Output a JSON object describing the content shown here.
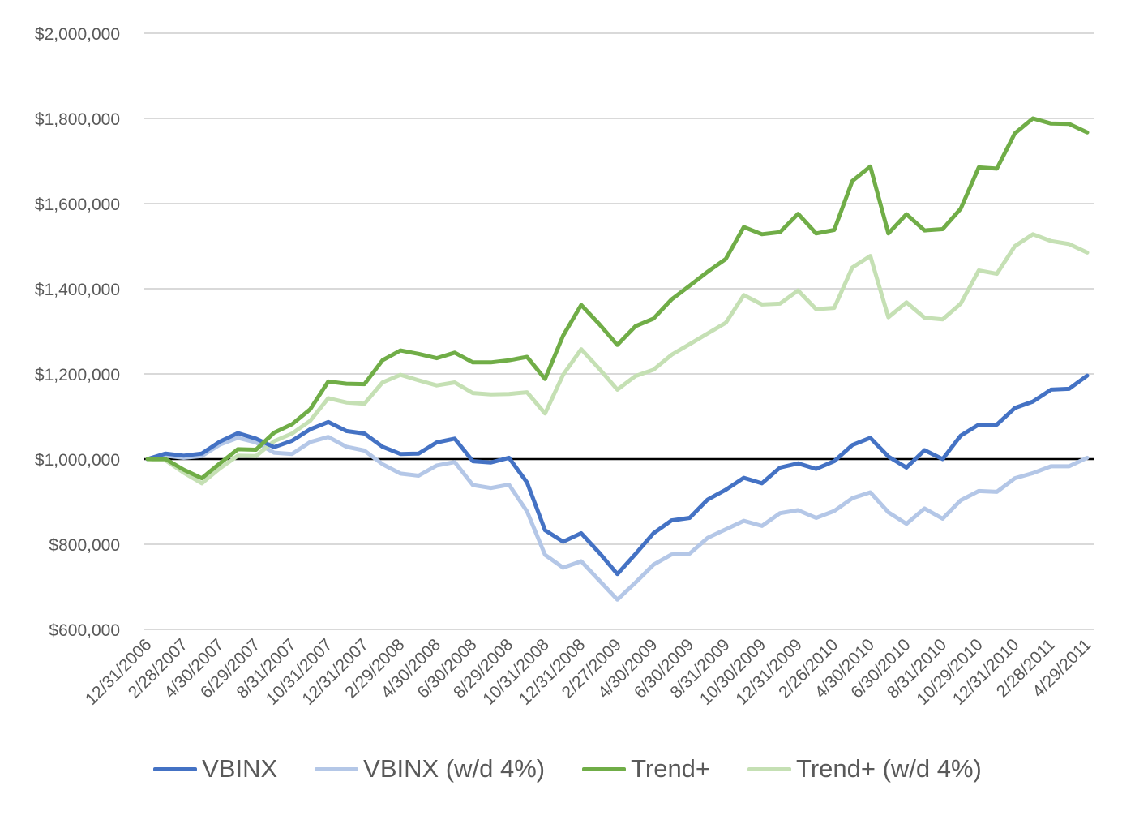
{
  "chart_data": {
    "type": "line",
    "title": "",
    "xlabel": "",
    "ylabel": "",
    "ylim": [
      600000,
      2000000
    ],
    "yticks": [
      600000,
      800000,
      1000000,
      1200000,
      1400000,
      1600000,
      1800000,
      2000000
    ],
    "ytick_labels": [
      "$600,000",
      "$800,000",
      "$1,000,000",
      "$1,200,000",
      "$1,400,000",
      "$1,600,000",
      "$1,800,000",
      "$2,000,000"
    ],
    "grid": true,
    "legend_position": "bottom",
    "reference_line": 1000000,
    "xtick_labels": [
      "12/31/2006",
      "2/28/2007",
      "4/30/2007",
      "6/29/2007",
      "8/31/2007",
      "10/31/2007",
      "12/31/2007",
      "2/29/2008",
      "4/30/2008",
      "6/30/2008",
      "8/29/2008",
      "10/31/2008",
      "12/31/2008",
      "2/27/2009",
      "4/30/2009",
      "6/30/2009",
      "8/31/2009",
      "10/30/2009",
      "12/31/2009",
      "2/26/2010",
      "4/30/2010",
      "6/30/2010",
      "8/31/2010",
      "10/29/2010",
      "12/31/2010",
      "2/28/2011",
      "4/29/2011"
    ],
    "series": [
      {
        "name": "VBINX",
        "color": "#4472c4",
        "values": [
          1000000,
          1013000,
          1008000,
          1013000,
          1041000,
          1061000,
          1048000,
          1028000,
          1043000,
          1070000,
          1087000,
          1066000,
          1060000,
          1029000,
          1012000,
          1013000,
          1039000,
          1048000,
          995000,
          992000,
          1003000,
          945000,
          833000,
          806000,
          826000,
          780000,
          730000,
          777000,
          826000,
          856000,
          862000,
          905000,
          928000,
          956000,
          943000,
          980000,
          990000,
          977000,
          995000,
          1033000,
          1050000,
          1006000,
          980000,
          1021000,
          1000000,
          1055000,
          1081000,
          1081000,
          1120000,
          1135000,
          1163000,
          1165000,
          1196000
        ]
      },
      {
        "name": "VBINX (w/d 4%)",
        "color": "#b4c7e7",
        "values": [
          1000000,
          1008000,
          1003000,
          1007000,
          1034000,
          1050000,
          1039000,
          1015000,
          1012000,
          1040000,
          1052000,
          1029000,
          1020000,
          988000,
          966000,
          961000,
          985000,
          993000,
          939000,
          932000,
          940000,
          877000,
          775000,
          745000,
          760000,
          715000,
          670000,
          710000,
          752000,
          776000,
          778000,
          815000,
          835000,
          855000,
          843000,
          873000,
          880000,
          862000,
          878000,
          908000,
          922000,
          875000,
          848000,
          884000,
          860000,
          903000,
          925000,
          923000,
          955000,
          967000,
          983000,
          983000,
          1003000
        ]
      },
      {
        "name": "Trend+",
        "color": "#70ad47",
        "values": [
          1000000,
          1000000,
          975000,
          955000,
          990000,
          1023000,
          1022000,
          1062000,
          1082000,
          1117000,
          1182000,
          1177000,
          1176000,
          1232000,
          1255000,
          1247000,
          1237000,
          1250000,
          1227000,
          1227000,
          1232000,
          1240000,
          1188000,
          1290000,
          1362000,
          1317000,
          1268000,
          1312000,
          1330000,
          1375000,
          1407000,
          1440000,
          1470000,
          1545000,
          1528000,
          1533000,
          1576000,
          1530000,
          1538000,
          1653000,
          1687000,
          1530000,
          1575000,
          1537000,
          1540000,
          1588000,
          1685000,
          1682000,
          1765000,
          1800000,
          1788000,
          1787000,
          1767000
        ]
      },
      {
        "name": "Trend+ (w/d 4%)",
        "color": "#c5e0b4",
        "values": [
          1000000,
          997000,
          968000,
          943000,
          978000,
          1008000,
          1007000,
          1042000,
          1060000,
          1090000,
          1143000,
          1133000,
          1130000,
          1180000,
          1198000,
          1185000,
          1173000,
          1180000,
          1155000,
          1152000,
          1153000,
          1157000,
          1107000,
          1198000,
          1258000,
          1212000,
          1163000,
          1195000,
          1210000,
          1245000,
          1270000,
          1295000,
          1320000,
          1385000,
          1363000,
          1365000,
          1396000,
          1352000,
          1355000,
          1450000,
          1477000,
          1333000,
          1368000,
          1332000,
          1328000,
          1365000,
          1443000,
          1435000,
          1500000,
          1528000,
          1512000,
          1505000,
          1485000
        ]
      }
    ]
  }
}
